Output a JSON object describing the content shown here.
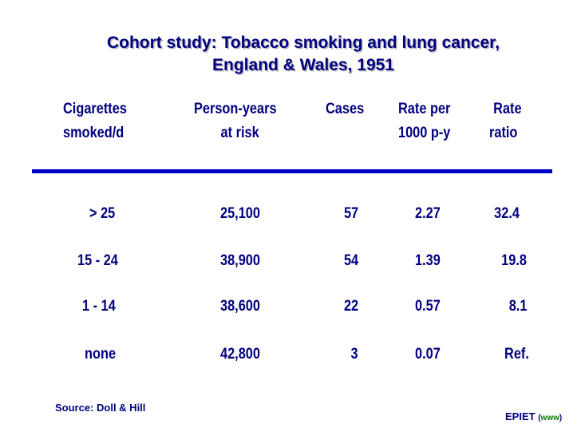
{
  "title": {
    "line1": "Cohort study: Tobacco smoking and lung cancer,",
    "line2": "England & Wales, 1951"
  },
  "headers": [
    {
      "line1": "Cigarettes",
      "line2": "smoked/d"
    },
    {
      "line1": "Person-years",
      "line2": "at risk"
    },
    {
      "line1": "Cases",
      "line2": ""
    },
    {
      "line1": "Rate per",
      "line2": "1000 p-y"
    },
    {
      "line1": "Rate",
      "line2": "ratio"
    }
  ],
  "rows": [
    {
      "cigs": "> 25",
      "py": "25,100",
      "cases": "57",
      "rate": "2.27",
      "ratio": "32.4"
    },
    {
      "cigs": "15 - 24",
      "py": "38,900",
      "cases": "54",
      "rate": "1.39",
      "ratio": "19.8"
    },
    {
      "cigs": "1 - 14",
      "py": "38,600",
      "cases": "22",
      "rate": "0.57",
      "ratio": "8.1"
    },
    {
      "cigs": "none",
      "py": "42,800",
      "cases": "3",
      "rate": "0.07",
      "ratio": "Ref."
    }
  ],
  "source": "Source: Doll & Hill",
  "footer": {
    "org": "EPIET",
    "open": "(",
    "link": "www",
    "close": ")"
  },
  "colors": {
    "text": "#000080",
    "rule": "#0000cc",
    "link": "#008000",
    "shadow": "#b8b8b8"
  }
}
